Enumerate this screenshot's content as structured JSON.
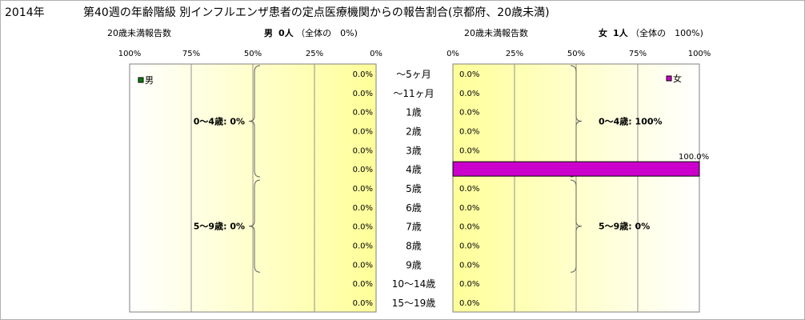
{
  "title": {
    "year": "2014年",
    "main": "第40週の年齢階級 別インフルエンザ患者の定点医療機関からの報告割合(京都府、20歳未満)"
  },
  "male_header": {
    "count_label": "20歳未満報告数",
    "sex": "男",
    "count": "0人",
    "share": "（全体の　0%)"
  },
  "female_header": {
    "count_label": "20歳未満報告数",
    "sex": "女",
    "count": "1人",
    "share": "（全体の　100%)"
  },
  "chart_data": [
    {
      "type": "bar",
      "orientation": "horizontal-reversed",
      "categories": [
        "～5ヶ月",
        "～11ヶ月",
        "1歳",
        "2歳",
        "3歳",
        "4歳",
        "5歳",
        "6歳",
        "7歳",
        "8歳",
        "9歳",
        "10～14歳",
        "15～19歳"
      ],
      "series": [
        {
          "name": "男",
          "values": [
            0,
            0,
            0,
            0,
            0,
            0,
            0,
            0,
            0,
            0,
            0,
            0,
            0
          ],
          "color": "#008000"
        }
      ],
      "value_labels": [
        "0.0%",
        "0.0%",
        "0.0%",
        "0.0%",
        "0.0%",
        "0.0%",
        "0.0%",
        "0.0%",
        "0.0%",
        "0.0%",
        "0.0%",
        "0.0%",
        "0.0%"
      ],
      "xlim": [
        0,
        100
      ],
      "x_tick_labels": [
        "100%",
        "75%",
        "50%",
        "25%",
        "0%"
      ],
      "group_annotations": [
        "0～4歳: 0%",
        "5～9歳: 0%"
      ],
      "legend_position": "top-left",
      "background": "yellow-gradient"
    },
    {
      "type": "bar",
      "orientation": "horizontal",
      "categories": [
        "～5ヶ月",
        "～11ヶ月",
        "1歳",
        "2歳",
        "3歳",
        "4歳",
        "5歳",
        "6歳",
        "7歳",
        "8歳",
        "9歳",
        "10～14歳",
        "15～19歳"
      ],
      "series": [
        {
          "name": "女",
          "values": [
            0,
            0,
            0,
            0,
            0,
            100,
            0,
            0,
            0,
            0,
            0,
            0,
            0
          ],
          "color": "#cc00cc"
        }
      ],
      "value_labels": [
        "0.0%",
        "0.0%",
        "0.0%",
        "0.0%",
        "0.0%",
        "100.0%",
        "0.0%",
        "0.0%",
        "0.0%",
        "0.0%",
        "0.0%",
        "0.0%",
        "0.0%"
      ],
      "xlim": [
        0,
        100
      ],
      "x_tick_labels": [
        "0%",
        "25%",
        "50%",
        "75%",
        "100%"
      ],
      "group_annotations": [
        "0～4歳: 100%",
        "5～9歳: 0%"
      ],
      "legend_position": "top-right",
      "background": "yellow-gradient"
    }
  ]
}
